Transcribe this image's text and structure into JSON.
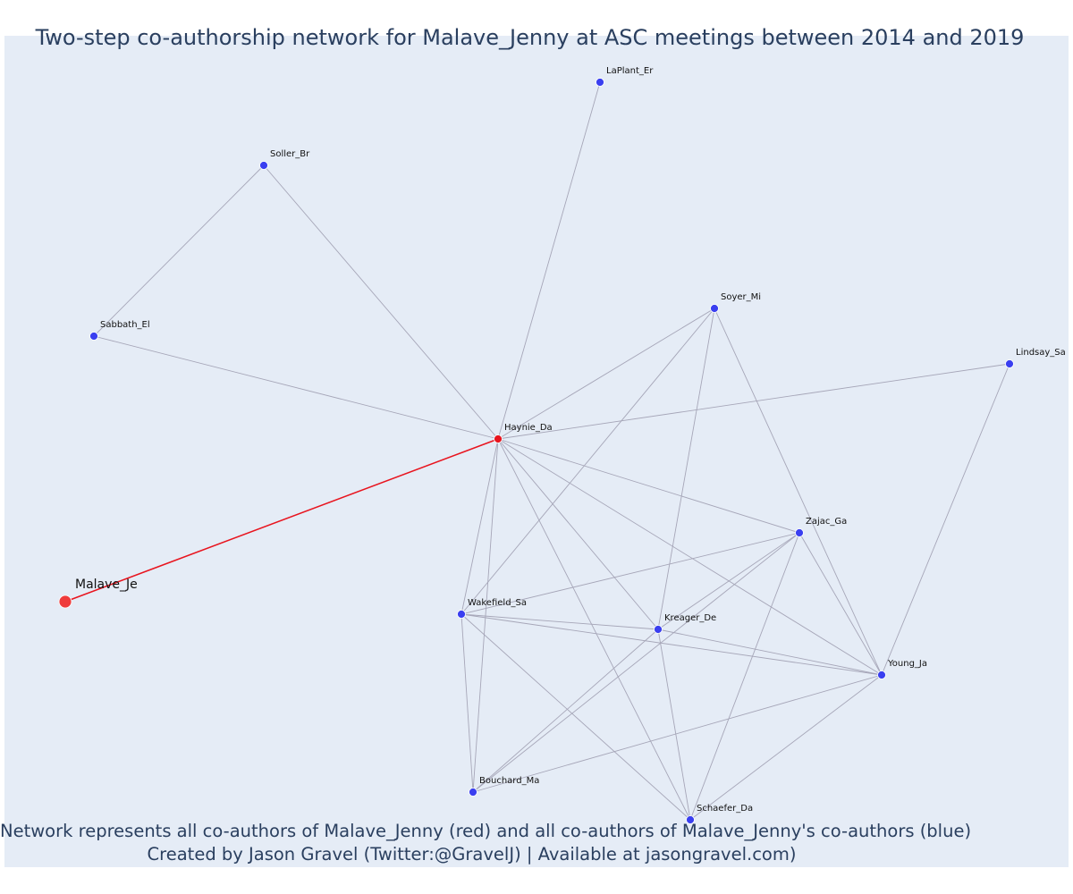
{
  "title": "Two-step co-authorship network for Malave_Jenny at ASC meetings between 2014 and 2019",
  "caption_lines": [
    "Network represents all co-authors of Malave_Jenny (red) and all co-authors of Malave_Jenny's co-authors (blue)",
    "Created by Jason Gravel (Twitter:@GravelJ) | Available at jasongravel.com)"
  ],
  "colors": {
    "background": "#e5ecf6",
    "edge": "#a6a6b8",
    "focal_edge": "#e8141e",
    "focal_node": "#ef3b3b",
    "coauthor_node": "#e8141e",
    "second_step_node": "#3a3ff0",
    "title_text": "#2a3f5f"
  },
  "nodes": [
    {
      "id": "Malave_Je",
      "label": "Malave_Je",
      "role": "focal"
    },
    {
      "id": "Haynie_Da",
      "label": "Haynie_Da",
      "role": "coauthor"
    },
    {
      "id": "LaPlant_Er",
      "label": "LaPlant_Er",
      "role": "second_step"
    },
    {
      "id": "Soller_Br",
      "label": "Soller_Br",
      "role": "second_step"
    },
    {
      "id": "Sabbath_El",
      "label": "Sabbath_El",
      "role": "second_step"
    },
    {
      "id": "Soyer_Mi",
      "label": "Soyer_Mi",
      "role": "second_step"
    },
    {
      "id": "Lindsay_Sa",
      "label": "Lindsay_Sa",
      "role": "second_step"
    },
    {
      "id": "Zajac_Ga",
      "label": "Zajac_Ga",
      "role": "second_step"
    },
    {
      "id": "Wakefield_Sa",
      "label": "Wakefield_Sa",
      "role": "second_step"
    },
    {
      "id": "Kreager_De",
      "label": "Kreager_De",
      "role": "second_step"
    },
    {
      "id": "Young_Ja",
      "label": "Young_Ja",
      "role": "second_step"
    },
    {
      "id": "Bouchard_Ma",
      "label": "Bouchard_Ma",
      "role": "second_step"
    },
    {
      "id": "Schaefer_Da",
      "label": "Schaefer_Da",
      "role": "second_step"
    }
  ],
  "edges": [
    [
      "Malave_Je",
      "Haynie_Da"
    ],
    [
      "Haynie_Da",
      "LaPlant_Er"
    ],
    [
      "Haynie_Da",
      "Soller_Br"
    ],
    [
      "Haynie_Da",
      "Sabbath_El"
    ],
    [
      "Soller_Br",
      "Sabbath_El"
    ],
    [
      "Haynie_Da",
      "Soyer_Mi"
    ],
    [
      "Haynie_Da",
      "Lindsay_Sa"
    ],
    [
      "Haynie_Da",
      "Zajac_Ga"
    ],
    [
      "Haynie_Da",
      "Wakefield_Sa"
    ],
    [
      "Haynie_Da",
      "Kreager_De"
    ],
    [
      "Haynie_Da",
      "Young_Ja"
    ],
    [
      "Haynie_Da",
      "Bouchard_Ma"
    ],
    [
      "Haynie_Da",
      "Schaefer_Da"
    ],
    [
      "Soyer_Mi",
      "Wakefield_Sa"
    ],
    [
      "Soyer_Mi",
      "Kreager_De"
    ],
    [
      "Soyer_Mi",
      "Young_Ja"
    ],
    [
      "Lindsay_Sa",
      "Young_Ja"
    ],
    [
      "Zajac_Ga",
      "Wakefield_Sa"
    ],
    [
      "Zajac_Ga",
      "Kreager_De"
    ],
    [
      "Zajac_Ga",
      "Young_Ja"
    ],
    [
      "Zajac_Ga",
      "Bouchard_Ma"
    ],
    [
      "Zajac_Ga",
      "Schaefer_Da"
    ],
    [
      "Wakefield_Sa",
      "Kreager_De"
    ],
    [
      "Wakefield_Sa",
      "Young_Ja"
    ],
    [
      "Wakefield_Sa",
      "Bouchard_Ma"
    ],
    [
      "Wakefield_Sa",
      "Schaefer_Da"
    ],
    [
      "Kreager_De",
      "Young_Ja"
    ],
    [
      "Kreager_De",
      "Bouchard_Ma"
    ],
    [
      "Kreager_De",
      "Schaefer_Da"
    ],
    [
      "Young_Ja",
      "Bouchard_Ma"
    ],
    [
      "Young_Ja",
      "Schaefer_Da"
    ]
  ]
}
